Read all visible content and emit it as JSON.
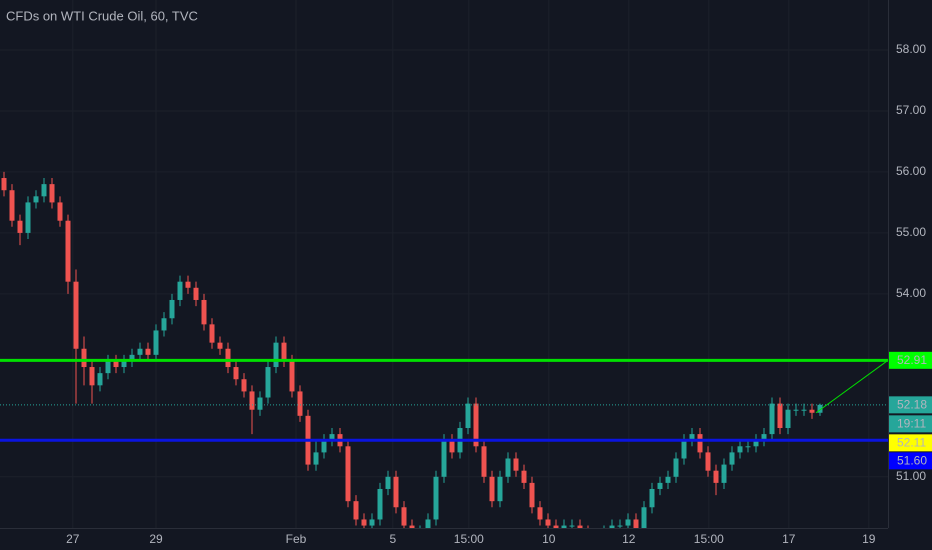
{
  "chart_data": {
    "type": "candlestick",
    "title": "CFDs on WTI Crude Oil, 60, TVC",
    "up_color": "#26a69a",
    "down_color": "#ef5350",
    "open": [
      55.9,
      55.7,
      55.2,
      55.0,
      55.5,
      55.6,
      55.8,
      55.5,
      55.2,
      54.2,
      53.1,
      52.8,
      52.5,
      52.7,
      52.9,
      52.8,
      52.9,
      53.0,
      53.1,
      53.0,
      53.4,
      53.6,
      53.9,
      54.2,
      54.1,
      53.9,
      53.5,
      53.2,
      53.1,
      52.8,
      52.6,
      52.4,
      52.1,
      52.3,
      52.8,
      53.2,
      52.9,
      52.4,
      52.0,
      51.2,
      51.4,
      51.6,
      51.7,
      51.5,
      50.6,
      50.3,
      50.2,
      50.3,
      50.8,
      51.0,
      50.5,
      50.2,
      50.0,
      50.1,
      50.3,
      51.0,
      51.6,
      51.4,
      51.8,
      52.2,
      51.5,
      51.0,
      50.6,
      51.0,
      51.3,
      51.1,
      50.9,
      50.5,
      50.3,
      50.2,
      50.1,
      50.2,
      50.2,
      50.1,
      50.0,
      50.0,
      50.1,
      50.2,
      50.2,
      50.3,
      50.1,
      50.5,
      50.8,
      50.9,
      51.0,
      51.3,
      51.6,
      51.7,
      51.4,
      51.1,
      50.9,
      51.2,
      51.4,
      51.5,
      51.5,
      51.6,
      51.7,
      52.2,
      51.8,
      52.1,
      52.1,
      52.1,
      52.05
    ],
    "high": [
      56.0,
      55.8,
      55.3,
      55.6,
      55.7,
      55.9,
      55.9,
      55.6,
      55.3,
      54.4,
      53.3,
      52.9,
      52.8,
      53.0,
      53.0,
      53.0,
      53.1,
      53.2,
      53.2,
      53.5,
      53.7,
      54.0,
      54.3,
      54.3,
      54.2,
      54.0,
      53.6,
      53.3,
      53.2,
      52.9,
      52.7,
      52.5,
      52.4,
      52.9,
      53.3,
      53.3,
      53.0,
      52.5,
      52.1,
      51.6,
      51.7,
      51.8,
      51.8,
      51.6,
      50.7,
      50.4,
      50.4,
      50.9,
      51.1,
      51.1,
      50.6,
      50.3,
      50.2,
      50.4,
      51.1,
      51.7,
      51.7,
      51.9,
      52.3,
      52.3,
      51.6,
      51.1,
      51.1,
      51.4,
      51.4,
      51.2,
      51.0,
      50.6,
      50.4,
      50.3,
      50.3,
      50.3,
      50.3,
      50.2,
      50.1,
      50.2,
      50.3,
      50.3,
      50.4,
      50.4,
      50.6,
      50.9,
      51.0,
      51.1,
      51.4,
      51.7,
      51.8,
      51.8,
      51.5,
      51.2,
      51.3,
      51.5,
      51.6,
      51.6,
      51.7,
      51.8,
      52.3,
      52.3,
      52.2,
      52.2,
      52.2,
      52.2,
      52.2
    ],
    "low": [
      55.6,
      55.1,
      54.8,
      54.9,
      55.4,
      55.5,
      55.4,
      55.1,
      54.0,
      52.2,
      52.5,
      52.2,
      52.4,
      52.6,
      52.7,
      52.7,
      52.8,
      52.9,
      52.9,
      52.9,
      53.3,
      53.5,
      53.8,
      54.0,
      53.8,
      53.4,
      53.1,
      53.0,
      52.7,
      52.5,
      52.3,
      51.7,
      52.0,
      52.2,
      52.7,
      52.8,
      52.3,
      51.9,
      51.1,
      51.1,
      51.3,
      51.5,
      51.4,
      50.5,
      50.2,
      50.1,
      50.1,
      50.2,
      50.7,
      50.4,
      50.1,
      49.9,
      49.9,
      50.0,
      50.2,
      50.9,
      51.3,
      51.3,
      51.7,
      51.4,
      50.9,
      50.5,
      50.5,
      50.9,
      51.0,
      50.8,
      50.4,
      50.2,
      50.1,
      50.0,
      50.0,
      50.1,
      50.0,
      49.9,
      49.9,
      49.9,
      50.0,
      50.1,
      50.1,
      50.0,
      50.0,
      50.4,
      50.7,
      50.8,
      50.9,
      51.2,
      51.5,
      51.3,
      51.0,
      50.7,
      50.8,
      51.1,
      51.3,
      51.4,
      51.4,
      51.5,
      51.6,
      51.7,
      51.7,
      52.0,
      52.0,
      51.95,
      52.0
    ],
    "close": [
      55.7,
      55.2,
      55.0,
      55.5,
      55.6,
      55.8,
      55.5,
      55.2,
      54.2,
      53.1,
      52.8,
      52.5,
      52.7,
      52.9,
      52.8,
      52.9,
      53.0,
      53.1,
      53.0,
      53.4,
      53.6,
      53.9,
      54.2,
      54.1,
      53.9,
      53.5,
      53.2,
      53.1,
      52.8,
      52.6,
      52.4,
      52.1,
      52.3,
      52.8,
      53.2,
      52.9,
      52.4,
      52.0,
      51.2,
      51.4,
      51.6,
      51.7,
      51.5,
      50.6,
      50.3,
      50.2,
      50.3,
      50.8,
      51.0,
      50.5,
      50.2,
      50.0,
      50.1,
      50.3,
      51.0,
      51.6,
      51.4,
      51.8,
      52.2,
      51.5,
      51.0,
      50.6,
      51.0,
      51.3,
      51.1,
      50.9,
      50.5,
      50.3,
      50.2,
      50.1,
      50.2,
      50.2,
      50.1,
      50.0,
      50.0,
      50.1,
      50.2,
      50.2,
      50.3,
      50.1,
      50.5,
      50.8,
      50.9,
      51.0,
      51.3,
      51.6,
      51.7,
      51.4,
      51.1,
      50.9,
      51.2,
      51.4,
      51.5,
      51.5,
      51.6,
      51.7,
      52.2,
      51.8,
      52.1,
      52.1,
      52.1,
      52.05,
      52.18
    ],
    "xlim": [
      0,
      111
    ],
    "xticks": [
      {
        "value": 9.1,
        "label": "27"
      },
      {
        "value": 19.5,
        "label": "29"
      },
      {
        "value": 37,
        "label": "Feb"
      },
      {
        "value": 49.1,
        "label": "5"
      },
      {
        "value": 58.6,
        "label": "15:00"
      },
      {
        "value": 68.6,
        "label": "10"
      },
      {
        "value": 78.6,
        "label": "12"
      },
      {
        "value": 88.6,
        "label": "15:00"
      },
      {
        "value": 98.6,
        "label": "17"
      },
      {
        "value": 108.6,
        "label": "19"
      }
    ],
    "ylim": [
      50.16,
      58.82
    ],
    "yticks": [
      {
        "value": 51,
        "label": "51.00"
      },
      {
        "value": 54,
        "label": "54.00"
      },
      {
        "value": 55,
        "label": "55.00"
      },
      {
        "value": 56,
        "label": "56.00"
      },
      {
        "value": 57,
        "label": "57.00"
      },
      {
        "value": 58,
        "label": "58.00"
      }
    ],
    "grid": true,
    "lines": [
      {
        "value": 52.91,
        "color": "#00e000",
        "label_color": "#00ff00"
      },
      {
        "value": {
          "value": 51.6,
          "label": "51.60"
        },
        "color": "#0a14e0",
        "label_color": "#0000ff"
      }
    ],
    "last_price": 52.18,
    "last_price_color": "#26a69a",
    "countdown": "19:11",
    "marker_price": 52.11,
    "marker_color": "#ffff00",
    "trendline": {
      "from": [
        102,
        52.05
      ],
      "to": [
        111,
        52.91
      ],
      "color": "#00e000"
    }
  }
}
